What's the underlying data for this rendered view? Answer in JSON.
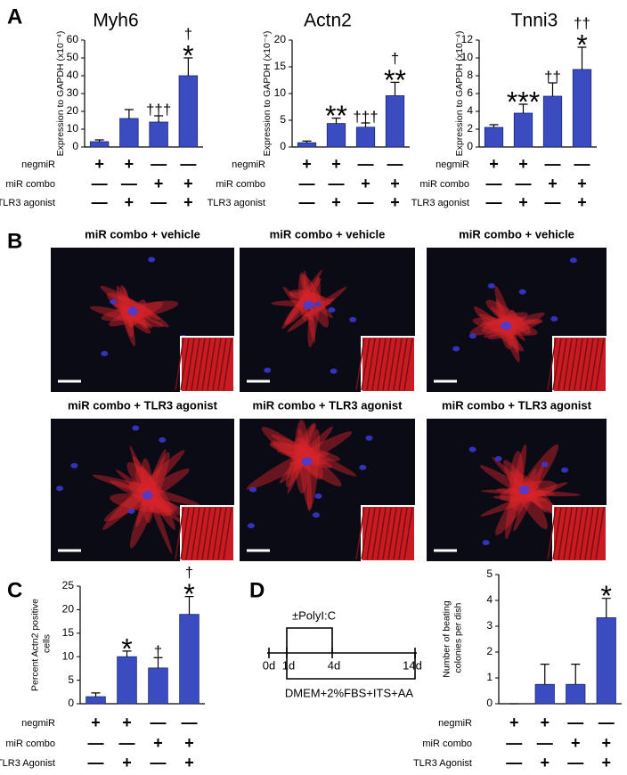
{
  "panels": [
    "A",
    "B",
    "C",
    "D"
  ],
  "chart_data": [
    {
      "type": "bar",
      "title": "Myh6",
      "y_label": "Expression to GAPDH (x10⁻⁴)",
      "color": "#3a4cc0",
      "values": [
        3,
        16,
        14,
        40
      ],
      "errors": [
        1,
        5,
        3.5,
        10
      ],
      "markers": [
        [],
        [],
        [
          "†††"
        ],
        [
          "†",
          "*"
        ]
      ],
      "ylim": [
        0,
        60
      ],
      "yticks": [
        0,
        10,
        20,
        30,
        40,
        50,
        60
      ],
      "conditions": [
        {
          "name": "negmiR",
          "signs": [
            "+",
            "+",
            "—",
            "—"
          ]
        },
        {
          "name": "miR combo",
          "signs": [
            "—",
            "—",
            "+",
            "+"
          ]
        },
        {
          "name": "TLR3 agonist",
          "signs": [
            "—",
            "+",
            "—",
            "+"
          ]
        }
      ]
    },
    {
      "type": "bar",
      "title": "Actn2",
      "y_label": "Expression to GAPDH (x10⁻⁴)",
      "color": "#3a4cc0",
      "values": [
        0.8,
        4.4,
        3.7,
        9.6
      ],
      "errors": [
        0.3,
        1.0,
        0.8,
        2.5
      ],
      "markers": [
        [],
        [
          "**"
        ],
        [
          "†††"
        ],
        [
          "†",
          "**"
        ]
      ],
      "ylim": [
        0,
        20
      ],
      "yticks": [
        0,
        5,
        10,
        15,
        20
      ],
      "conditions": [
        {
          "name": "negmiR",
          "signs": [
            "+",
            "+",
            "—",
            "—"
          ]
        },
        {
          "name": "miR combo",
          "signs": [
            "—",
            "—",
            "+",
            "+"
          ]
        },
        {
          "name": "TLR3 agonist",
          "signs": [
            "—",
            "+",
            "—",
            "+"
          ]
        }
      ]
    },
    {
      "type": "bar",
      "title": "Tnni3",
      "y_label": "Expression to GAPDH (x10⁻⁴)",
      "color": "#3a4cc0",
      "values": [
        2.2,
        3.8,
        5.7,
        8.7
      ],
      "errors": [
        0.3,
        1.0,
        1.5,
        2.5
      ],
      "markers": [
        [],
        [
          "***"
        ],
        [
          "††"
        ],
        [
          "††",
          "*"
        ]
      ],
      "ylim": [
        0,
        12
      ],
      "yticks": [
        0,
        2,
        4,
        6,
        8,
        10,
        12
      ],
      "conditions": [
        {
          "name": "negmiR",
          "signs": [
            "+",
            "+",
            "—",
            "—"
          ]
        },
        {
          "name": "miR combo",
          "signs": [
            "—",
            "—",
            "+",
            "+"
          ]
        },
        {
          "name": "TLR3 agonist",
          "signs": [
            "—",
            "+",
            "—",
            "+"
          ]
        }
      ]
    },
    {
      "type": "bar",
      "y_label": "Percent Actn2 positive cells",
      "color": "#3a4cc0",
      "values": [
        1.5,
        10,
        7.6,
        19
      ],
      "errors": [
        0.8,
        1.2,
        2.2,
        3.8
      ],
      "markers": [
        [],
        [
          "*"
        ],
        [
          "†"
        ],
        [
          "†",
          "*"
        ]
      ],
      "ylim": [
        0,
        25
      ],
      "yticks": [
        0,
        5,
        10,
        15,
        20,
        25
      ],
      "conditions": [
        {
          "name": "negmiR",
          "signs": [
            "+",
            "+",
            "—",
            "—"
          ]
        },
        {
          "name": "miR combo",
          "signs": [
            "—",
            "—",
            "+",
            "+"
          ]
        },
        {
          "name": "TLR3 Agonist",
          "signs": [
            "—",
            "+",
            "—",
            "+"
          ]
        }
      ]
    },
    {
      "type": "bar",
      "y_label": "Number of beating colonies per dish",
      "color": "#3a4cc0",
      "values": [
        0,
        0.75,
        0.75,
        3.33
      ],
      "errors": [
        0,
        0.78,
        0.78,
        0.75
      ],
      "markers": [
        [],
        [],
        [],
        [
          "*"
        ]
      ],
      "ylim": [
        0,
        5
      ],
      "yticks": [
        0,
        1,
        2,
        3,
        4,
        5
      ],
      "conditions": [
        {
          "name": "negmiR",
          "signs": [
            "+",
            "+",
            "—",
            "—"
          ]
        },
        {
          "name": "miR combo",
          "signs": [
            "—",
            "—",
            "+",
            "+"
          ]
        },
        {
          "name": "TLR3 Agonist",
          "signs": [
            "—",
            "+",
            "—",
            "+"
          ]
        }
      ]
    }
  ],
  "timeline": {
    "ticks": [
      "0d",
      "1d",
      "4d",
      "14d"
    ],
    "treatment": "±PolyI:C",
    "medium": "DMEM+2%FBS+ITS+AA"
  },
  "images": [
    {
      "caption": "miR combo + vehicle"
    },
    {
      "caption": "miR combo + vehicle"
    },
    {
      "caption": "miR combo + vehicle"
    },
    {
      "caption": "miR combo + TLR3 agonist"
    },
    {
      "caption": "miR combo + TLR3 agonist"
    },
    {
      "caption": "miR combo + TLR3 agonist"
    }
  ]
}
